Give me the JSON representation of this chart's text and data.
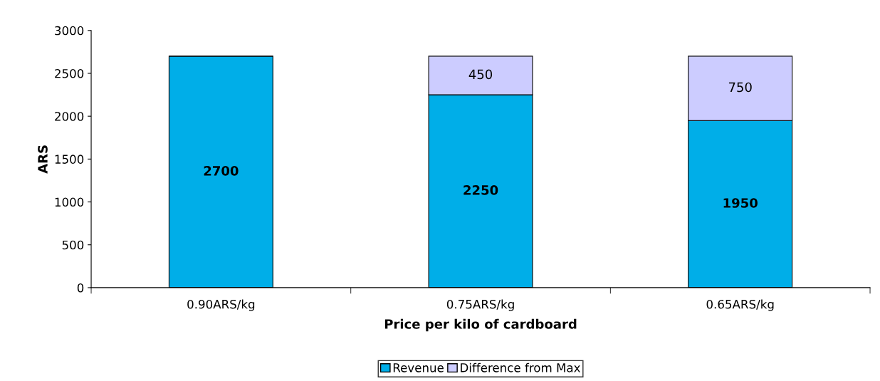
{
  "chart_data": {
    "type": "bar",
    "stacked": true,
    "xlabel": "Price per kilo of cardboard",
    "ylabel": "ARS",
    "categories": [
      "0.90ARS/kg",
      "0.75ARS/kg",
      "0.65ARS/kg"
    ],
    "series": [
      {
        "name": "Revenue",
        "color": "#00aee8",
        "values": [
          2700,
          2250,
          1950
        ]
      },
      {
        "name": "Difference from Max",
        "color": "#ccccff",
        "values": [
          null,
          450,
          750
        ]
      }
    ],
    "ylim": [
      0,
      3000
    ],
    "yticks": [
      0,
      500,
      1000,
      1500,
      2000,
      2500,
      3000
    ],
    "grid": false,
    "legend": "bottom",
    "data_labels": true
  }
}
